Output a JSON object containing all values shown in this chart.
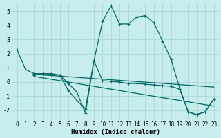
{
  "xlabel": "Humidex (Indice chaleur)",
  "bg_color": "#c8eded",
  "grid_color": "#a8d8d8",
  "line_color": "#006666",
  "xlim": [
    -0.5,
    23.5
  ],
  "ylim": [
    -2.6,
    5.6
  ],
  "yticks": [
    -2,
    -1,
    0,
    1,
    2,
    3,
    4,
    5
  ],
  "xticks": [
    0,
    1,
    2,
    3,
    4,
    5,
    6,
    7,
    8,
    9,
    10,
    11,
    12,
    13,
    14,
    15,
    16,
    17,
    18,
    19,
    20,
    21,
    22,
    23
  ],
  "lines": [
    {
      "x": [
        0,
        1,
        2,
        3,
        4,
        5,
        6,
        7,
        8,
        9,
        10,
        11,
        12,
        13,
        14,
        15,
        16,
        17,
        18,
        19,
        20,
        21,
        22,
        23
      ],
      "y": [
        2.3,
        0.9,
        0.6,
        0.6,
        0.6,
        0.5,
        -0.6,
        -1.3,
        -1.9,
        1.5,
        4.3,
        5.4,
        4.1,
        4.1,
        4.6,
        4.7,
        4.2,
        2.9,
        1.6,
        -0.4,
        -2.1,
        -2.3,
        -2.1,
        -1.2
      ],
      "marker": true
    },
    {
      "x": [
        2,
        3,
        4,
        5,
        6,
        7,
        8,
        9,
        10,
        11,
        12,
        13,
        14,
        15,
        16,
        17,
        18,
        19,
        20,
        21,
        22,
        23
      ],
      "y": [
        0.5,
        0.6,
        0.55,
        0.5,
        -0.1,
        -0.7,
        -2.2,
        1.5,
        0.1,
        0.05,
        0.0,
        -0.1,
        -0.1,
        -0.15,
        -0.2,
        -0.25,
        -0.3,
        -0.5,
        -2.1,
        -2.3,
        -2.1,
        -1.2
      ],
      "marker": true
    },
    {
      "x": [
        2,
        23
      ],
      "y": [
        0.55,
        -0.35
      ],
      "marker": false
    },
    {
      "x": [
        2,
        23
      ],
      "y": [
        0.4,
        -1.7
      ],
      "marker": false
    }
  ],
  "markersize": 3.5,
  "linewidth": 0.9
}
